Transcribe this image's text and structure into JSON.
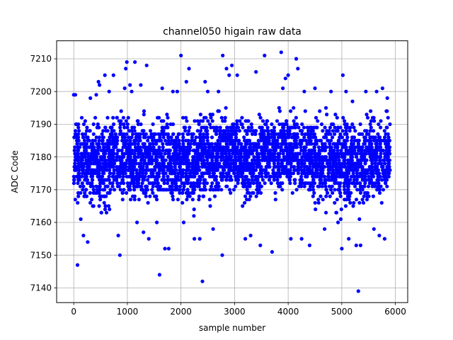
{
  "chart_data": {
    "type": "scatter",
    "title": "channel050 higain raw data",
    "xlabel": "sample number",
    "ylabel": "ADC Code",
    "xlim": [
      -320,
      6230
    ],
    "ylim": [
      7135.5,
      7215.5
    ],
    "xticks": [
      0,
      1000,
      2000,
      3000,
      4000,
      5000,
      6000
    ],
    "yticks": [
      7140,
      7150,
      7160,
      7170,
      7180,
      7190,
      7200,
      7210
    ],
    "grid": true,
    "marker_color": "#0000ff",
    "series": [
      {
        "points": [
          [
            0,
            7199
          ],
          [
            30,
            7199
          ],
          [
            70,
            7147
          ],
          [
            130,
            7161
          ],
          [
            180,
            7156
          ],
          [
            260,
            7154
          ],
          [
            310,
            7198
          ],
          [
            420,
            7199
          ],
          [
            460,
            7203
          ],
          [
            480,
            7202
          ],
          [
            580,
            7205
          ],
          [
            660,
            7200
          ],
          [
            740,
            7205
          ],
          [
            830,
            7156
          ],
          [
            860,
            7150
          ],
          [
            950,
            7201
          ],
          [
            970,
            7207
          ],
          [
            990,
            7209
          ],
          [
            1050,
            7202
          ],
          [
            1080,
            7200
          ],
          [
            1140,
            7209
          ],
          [
            1180,
            7160
          ],
          [
            1250,
            7202
          ],
          [
            1300,
            7157
          ],
          [
            1360,
            7208
          ],
          [
            1400,
            7155
          ],
          [
            1550,
            7160
          ],
          [
            1600,
            7144
          ],
          [
            1650,
            7201
          ],
          [
            1700,
            7152
          ],
          [
            1770,
            7152
          ],
          [
            1850,
            7200
          ],
          [
            1930,
            7200
          ],
          [
            2000,
            7211
          ],
          [
            2050,
            7160
          ],
          [
            2100,
            7203
          ],
          [
            2150,
            7207
          ],
          [
            2250,
            7155
          ],
          [
            2350,
            7155
          ],
          [
            2400,
            7142
          ],
          [
            2450,
            7203
          ],
          [
            2500,
            7200
          ],
          [
            2600,
            7158
          ],
          [
            2700,
            7200
          ],
          [
            2770,
            7150
          ],
          [
            2780,
            7211
          ],
          [
            2850,
            7207
          ],
          [
            2900,
            7205
          ],
          [
            2950,
            7208
          ],
          [
            3050,
            7205
          ],
          [
            3200,
            7155
          ],
          [
            3300,
            7156
          ],
          [
            3400,
            7206
          ],
          [
            3480,
            7153
          ],
          [
            3560,
            7211
          ],
          [
            3700,
            7151
          ],
          [
            3830,
            7195
          ],
          [
            3870,
            7212
          ],
          [
            3900,
            7201
          ],
          [
            3950,
            7204
          ],
          [
            4000,
            7205
          ],
          [
            4050,
            7155
          ],
          [
            4150,
            7210
          ],
          [
            4180,
            7207
          ],
          [
            4250,
            7155
          ],
          [
            4300,
            7200
          ],
          [
            4400,
            7153
          ],
          [
            4500,
            7201
          ],
          [
            4680,
            7158
          ],
          [
            4800,
            7200
          ],
          [
            4930,
            7160
          ],
          [
            5000,
            7152
          ],
          [
            5020,
            7205
          ],
          [
            5080,
            7200
          ],
          [
            5130,
            7155
          ],
          [
            5200,
            7197
          ],
          [
            5270,
            7153
          ],
          [
            5310,
            7139
          ],
          [
            5350,
            7153
          ],
          [
            5450,
            7200
          ],
          [
            5600,
            7158
          ],
          [
            5650,
            7200
          ],
          [
            5700,
            7156
          ],
          [
            5760,
            7201
          ],
          [
            5800,
            7155
          ],
          [
            5850,
            7198
          ]
        ],
        "bands": [
          [
            0,
            300,
            7163,
            7195
          ],
          [
            300,
            700,
            7160,
            7196
          ],
          [
            700,
            1100,
            7162,
            7196
          ],
          [
            1100,
            1500,
            7160,
            7196
          ],
          [
            1500,
            1900,
            7162,
            7197
          ],
          [
            1900,
            2300,
            7160,
            7196
          ],
          [
            2300,
            2700,
            7163,
            7197
          ],
          [
            2700,
            3100,
            7165,
            7197
          ],
          [
            3100,
            3500,
            7162,
            7196
          ],
          [
            3500,
            3900,
            7165,
            7197
          ],
          [
            3900,
            4300,
            7166,
            7197
          ],
          [
            4300,
            4700,
            7162,
            7196
          ],
          [
            4700,
            5100,
            7160,
            7197
          ],
          [
            5100,
            5500,
            7160,
            7195
          ],
          [
            5500,
            5900,
            7163,
            7197
          ]
        ]
      }
    ]
  }
}
